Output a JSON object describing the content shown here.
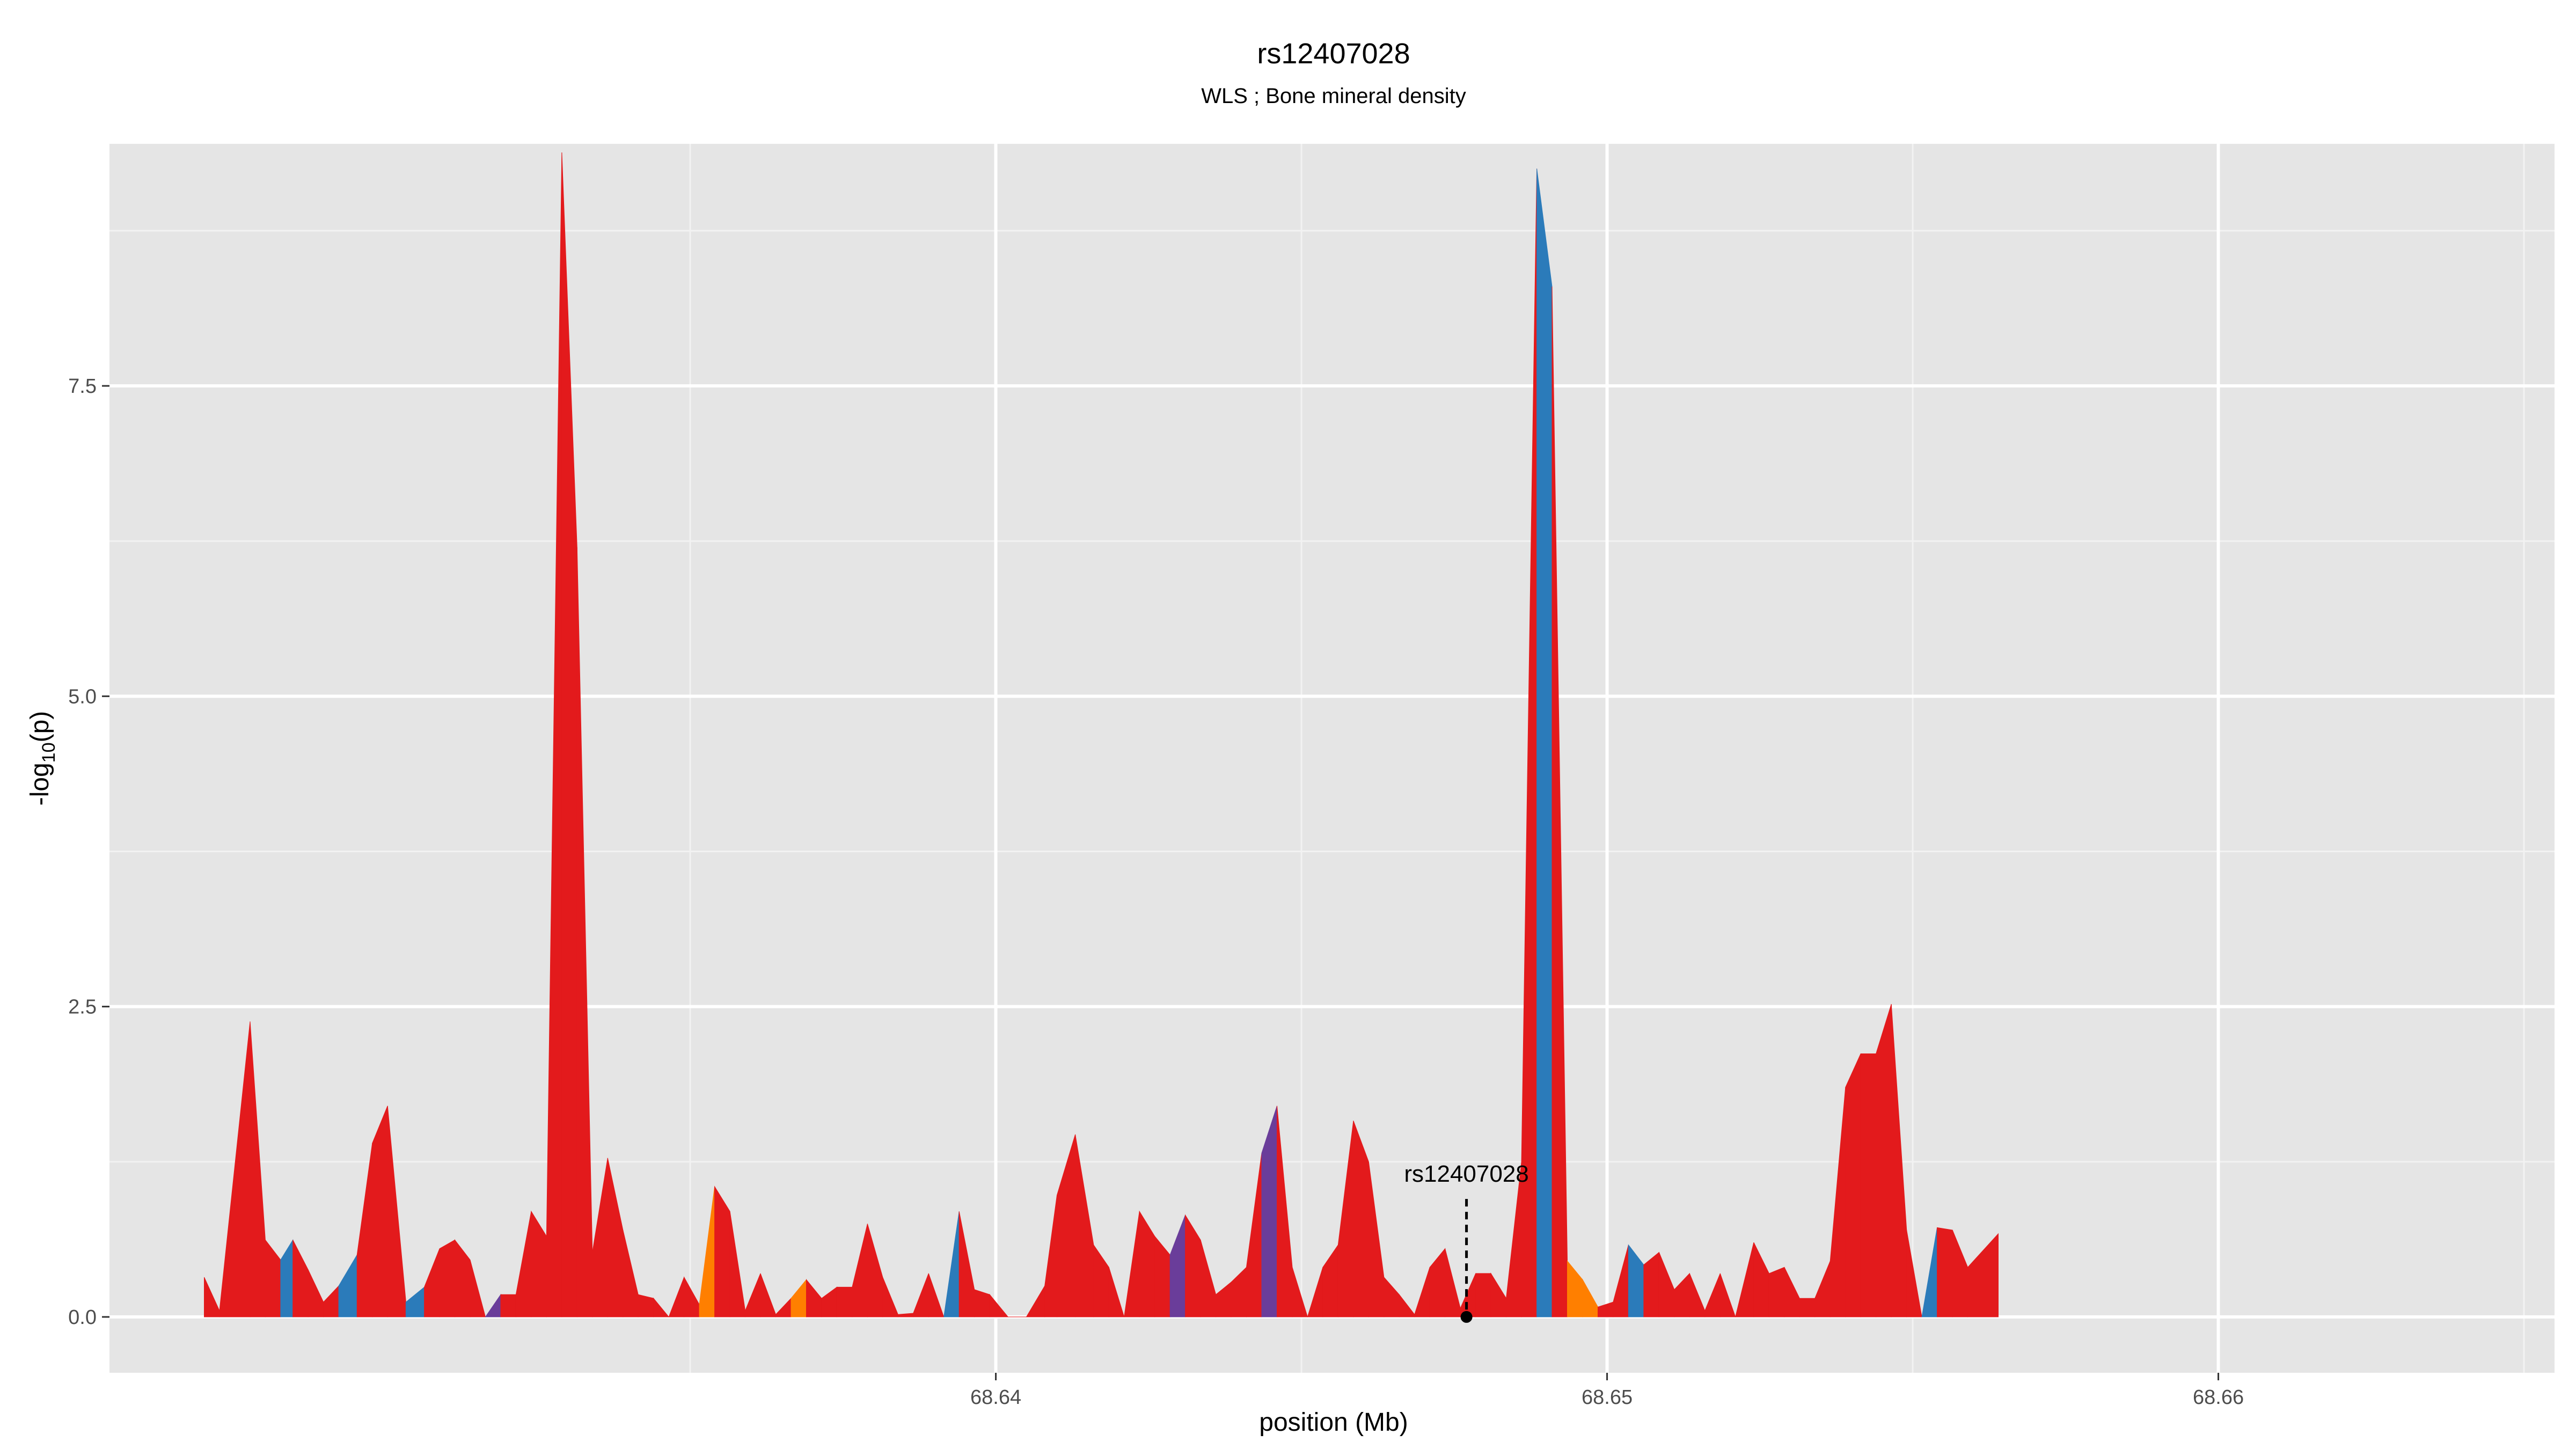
{
  "chart_data": {
    "type": "area",
    "title": "rs12407028",
    "subtitle": "WLS ; Bone mineral density",
    "xlabel": "position (Mb)",
    "ylabel_main": "-log",
    "ylabel_sub": "10",
    "ylabel_tail": "(p)",
    "xlim": [
      68.6255,
      68.6655
    ],
    "ylim": [
      -0.45,
      9.45
    ],
    "x_ticks": [
      {
        "value": 68.64,
        "label": "68.64"
      },
      {
        "value": 68.65,
        "label": "68.65"
      },
      {
        "value": 68.66,
        "label": "68.66"
      }
    ],
    "x_minor": [
      68.635,
      68.645,
      68.655,
      68.665
    ],
    "y_ticks": [
      {
        "value": 0.0,
        "label": "0.0"
      },
      {
        "value": 2.5,
        "label": "2.5"
      },
      {
        "value": 5.0,
        "label": "5.0"
      },
      {
        "value": 7.5,
        "label": "7.5"
      }
    ],
    "y_minor": [
      1.25,
      3.75,
      6.25,
      8.75
    ],
    "colors": {
      "red": "#e31a1c",
      "blue": "#2b7bba",
      "purple": "#6a3d9a",
      "orange": "#ff7f00"
    },
    "annotation": {
      "label": "rs12407028",
      "x": 68.6477,
      "y": 0.0,
      "line_top": 0.95
    },
    "points": [
      [
        68.62705,
        0.32,
        "red"
      ],
      [
        68.6273,
        0.05,
        "red"
      ],
      [
        68.6278,
        2.38,
        "red"
      ],
      [
        68.62805,
        0.62,
        "red"
      ],
      [
        68.6283,
        0.46,
        "red"
      ],
      [
        68.6285,
        0.62,
        "blue"
      ],
      [
        68.62875,
        0.38,
        "red"
      ],
      [
        68.629,
        0.12,
        "red"
      ],
      [
        68.62925,
        0.25,
        "red"
      ],
      [
        68.62955,
        0.5,
        "blue"
      ],
      [
        68.6298,
        1.4,
        "red"
      ],
      [
        68.63005,
        1.7,
        "red"
      ],
      [
        68.63035,
        0.12,
        "red"
      ],
      [
        68.63065,
        0.24,
        "blue"
      ],
      [
        68.6309,
        0.55,
        "red"
      ],
      [
        68.63115,
        0.62,
        "red"
      ],
      [
        68.6314,
        0.46,
        "red"
      ],
      [
        68.63165,
        0.0,
        "red"
      ],
      [
        68.6319,
        0.18,
        "purple"
      ],
      [
        68.63215,
        0.18,
        "red"
      ],
      [
        68.6324,
        0.85,
        "red"
      ],
      [
        68.63265,
        0.65,
        "red"
      ],
      [
        68.6329,
        9.38,
        "red"
      ],
      [
        68.63315,
        6.2,
        "red"
      ],
      [
        68.6334,
        0.52,
        "red"
      ],
      [
        68.63365,
        1.28,
        "red"
      ],
      [
        68.6339,
        0.7,
        "red"
      ],
      [
        68.63415,
        0.18,
        "red"
      ],
      [
        68.6344,
        0.15,
        "red"
      ],
      [
        68.63465,
        0.0,
        "red"
      ],
      [
        68.6349,
        0.32,
        "red"
      ],
      [
        68.63515,
        0.1,
        "red"
      ],
      [
        68.6354,
        1.05,
        "orange"
      ],
      [
        68.63565,
        0.85,
        "red"
      ],
      [
        68.6359,
        0.05,
        "red"
      ],
      [
        68.63615,
        0.35,
        "red"
      ],
      [
        68.6364,
        0.02,
        "red"
      ],
      [
        68.63665,
        0.15,
        "red"
      ],
      [
        68.6369,
        0.3,
        "orange"
      ],
      [
        68.63715,
        0.15,
        "red"
      ],
      [
        68.6374,
        0.24,
        "red"
      ],
      [
        68.63765,
        0.24,
        "red"
      ],
      [
        68.6379,
        0.75,
        "red"
      ],
      [
        68.63815,
        0.32,
        "red"
      ],
      [
        68.6384,
        0.02,
        "red"
      ],
      [
        68.63865,
        0.03,
        "red"
      ],
      [
        68.6389,
        0.35,
        "red"
      ],
      [
        68.63915,
        0.0,
        "red"
      ],
      [
        68.6394,
        0.85,
        "blue"
      ],
      [
        68.63965,
        0.22,
        "red"
      ],
      [
        68.6399,
        0.18,
        "red"
      ],
      [
        68.6402,
        0.0,
        "red"
      ],
      [
        68.6405,
        0.0,
        "red"
      ],
      [
        68.6408,
        0.25,
        "red"
      ],
      [
        68.641,
        0.98,
        "red"
      ],
      [
        68.6413,
        1.47,
        "red"
      ],
      [
        68.6416,
        0.58,
        "red"
      ],
      [
        68.64185,
        0.4,
        "red"
      ],
      [
        68.6421,
        0.0,
        "red"
      ],
      [
        68.64235,
        0.85,
        "red"
      ],
      [
        68.6426,
        0.65,
        "red"
      ],
      [
        68.64285,
        0.5,
        "red"
      ],
      [
        68.6431,
        0.82,
        "purple"
      ],
      [
        68.64335,
        0.62,
        "red"
      ],
      [
        68.6436,
        0.18,
        "red"
      ],
      [
        68.64385,
        0.28,
        "red"
      ],
      [
        68.6441,
        0.4,
        "red"
      ],
      [
        68.64435,
        1.32,
        "red"
      ],
      [
        68.6446,
        1.7,
        "purple"
      ],
      [
        68.64485,
        0.4,
        "red"
      ],
      [
        68.6451,
        0.0,
        "red"
      ],
      [
        68.64535,
        0.4,
        "red"
      ],
      [
        68.6456,
        0.58,
        "red"
      ],
      [
        68.64585,
        1.58,
        "red"
      ],
      [
        68.6461,
        1.25,
        "red"
      ],
      [
        68.64635,
        0.32,
        "red"
      ],
      [
        68.6466,
        0.18,
        "red"
      ],
      [
        68.64685,
        0.02,
        "red"
      ],
      [
        68.6471,
        0.4,
        "red"
      ],
      [
        68.64735,
        0.55,
        "red"
      ],
      [
        68.6476,
        0.07,
        "red"
      ],
      [
        68.64785,
        0.35,
        "red"
      ],
      [
        68.6481,
        0.35,
        "red"
      ],
      [
        68.64835,
        0.15,
        "red"
      ],
      [
        68.6486,
        1.25,
        "red"
      ],
      [
        68.64885,
        9.25,
        "red"
      ],
      [
        68.6491,
        8.3,
        "blue"
      ],
      [
        68.64935,
        0.45,
        "red"
      ],
      [
        68.6496,
        0.3,
        "orange"
      ],
      [
        68.64985,
        0.08,
        "orange"
      ],
      [
        68.6501,
        0.12,
        "red"
      ],
      [
        68.65035,
        0.58,
        "red"
      ],
      [
        68.6506,
        0.42,
        "blue"
      ],
      [
        68.65085,
        0.52,
        "red"
      ],
      [
        68.6511,
        0.22,
        "red"
      ],
      [
        68.65135,
        0.35,
        "red"
      ],
      [
        68.6516,
        0.05,
        "red"
      ],
      [
        68.65185,
        0.35,
        "red"
      ],
      [
        68.6521,
        0.0,
        "red"
      ],
      [
        68.6524,
        0.6,
        "red"
      ],
      [
        68.65265,
        0.35,
        "red"
      ],
      [
        68.6529,
        0.4,
        "red"
      ],
      [
        68.65315,
        0.15,
        "red"
      ],
      [
        68.6534,
        0.15,
        "red"
      ],
      [
        68.65365,
        0.45,
        "red"
      ],
      [
        68.6539,
        1.85,
        "red"
      ],
      [
        68.65415,
        2.12,
        "red"
      ],
      [
        68.6544,
        2.12,
        "red"
      ],
      [
        68.65465,
        2.52,
        "red"
      ],
      [
        68.6549,
        0.7,
        "red"
      ],
      [
        68.65515,
        0.0,
        "red"
      ],
      [
        68.6554,
        0.72,
        "blue"
      ],
      [
        68.65565,
        0.7,
        "red"
      ],
      [
        68.6559,
        0.4,
        "red"
      ],
      [
        68.6564,
        0.67,
        "red"
      ]
    ]
  }
}
